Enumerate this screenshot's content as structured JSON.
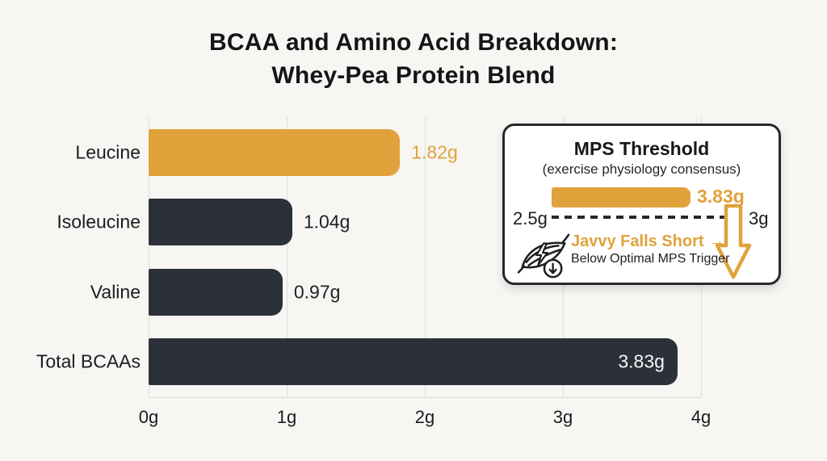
{
  "title": {
    "line1": "BCAA and Amino Acid Breakdown:",
    "line2": "Whey-Pea Protein Blend"
  },
  "chart_data": {
    "type": "bar",
    "orientation": "horizontal",
    "title": "BCAA and Amino Acid Breakdown: Whey-Pea Protein Blend",
    "categories": [
      "Leucine",
      "Isoleucine",
      "Valine",
      "Total BCAAs"
    ],
    "values": [
      1.82,
      1.04,
      0.97,
      3.83
    ],
    "value_labels": [
      "1.82g",
      "1.04g",
      "0.97g",
      "3.83g"
    ],
    "unit": "g",
    "xlim": [
      0,
      4
    ],
    "x_ticks": [
      "0g",
      "1g",
      "2g",
      "3g",
      "4g"
    ],
    "grid": true,
    "bar_colors": [
      "#E1A23C",
      "#2B303A",
      "#2B303A",
      "#2B303A"
    ],
    "value_colors": [
      "#DFA23C",
      "#202227",
      "#202227",
      "#F6F6F4"
    ]
  },
  "inset": {
    "title": "MPS Threshold",
    "subtitle": "(exercise physiology consensus)",
    "bar_value": 3.83,
    "bar_value_label": "3.83g",
    "threshold_low_label": "2.5g",
    "threshold_high_label": "3g",
    "callout": "Javvy Falls Short",
    "callout_arrow": "→",
    "callout_sub": "Below Optimal MPS Trigger"
  },
  "colors": {
    "accent_orange": "#E1A23C",
    "bar_dark": "#2B303A",
    "background": "#F7F6F3",
    "box_border": "#26282C",
    "gridline": "#DEDEDB"
  }
}
